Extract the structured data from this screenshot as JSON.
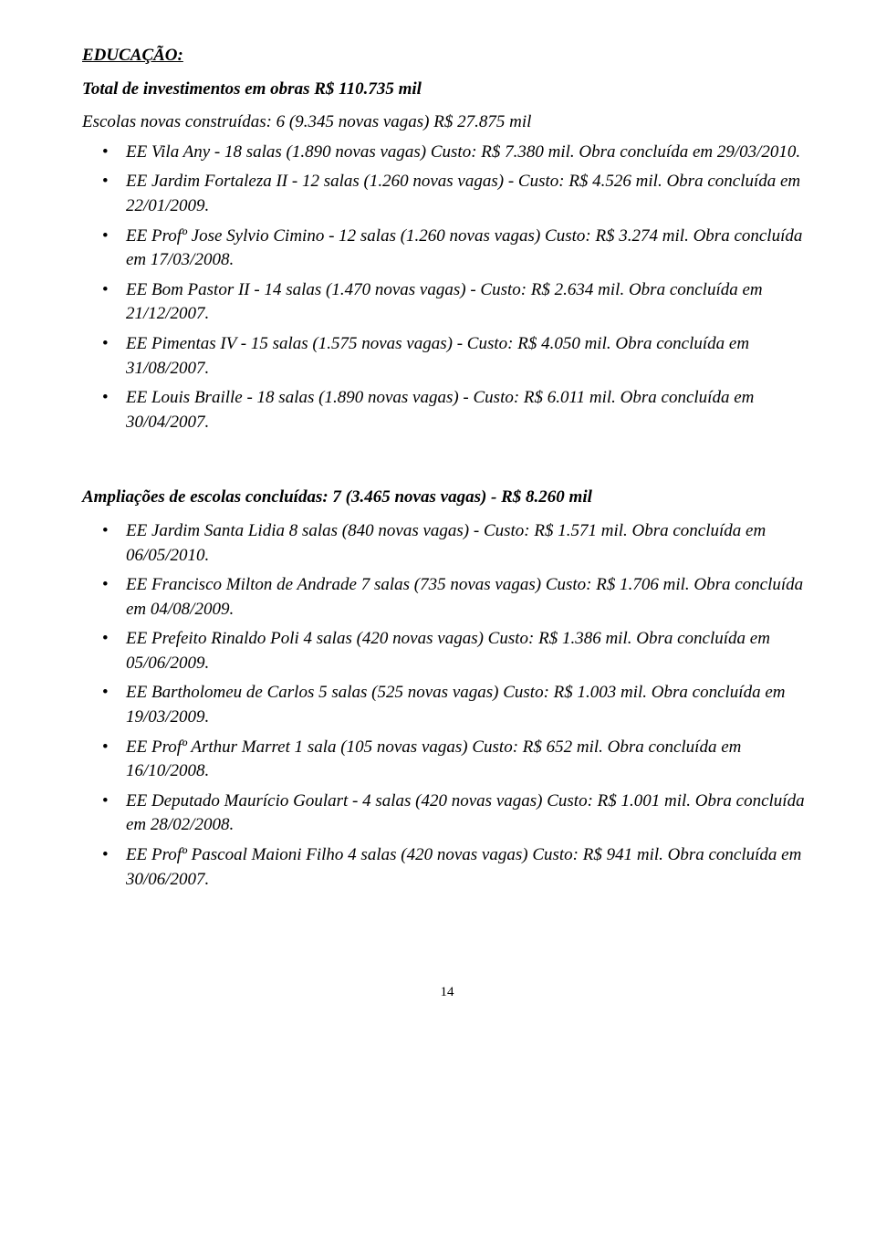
{
  "header": {
    "section_title": "EDUCAÇÃO:",
    "total_line": "Total de investimentos em obras R$ 110.735 mil",
    "schools_line": "Escolas novas construídas: 6 (9.345 novas vagas) R$ 27.875 mil"
  },
  "list1": [
    "EE Vila Any - 18 salas (1.890 novas vagas) Custo: R$ 7.380 mil. Obra concluída em 29/03/2010.",
    "EE Jardim Fortaleza II - 12 salas (1.260 novas vagas) - Custo: R$ 4.526 mil. Obra concluída em 22/01/2009.",
    "EE Profº Jose Sylvio Cimino - 12 salas (1.260 novas vagas) Custo: R$ 3.274 mil. Obra concluída em 17/03/2008.",
    "EE Bom Pastor II - 14 salas (1.470 novas vagas) - Custo: R$ 2.634 mil. Obra concluída em 21/12/2007.",
    "EE Pimentas IV - 15 salas (1.575 novas vagas) - Custo: R$ 4.050 mil. Obra concluída em 31/08/2007.",
    "EE Louis Braille - 18 salas (1.890 novas vagas) - Custo: R$ 6.011 mil. Obra concluída em 30/04/2007."
  ],
  "subheading": "Ampliações de escolas concluídas: 7 (3.465 novas vagas) - R$ 8.260 mil",
  "list2": [
    "EE Jardim Santa Lidia 8 salas (840 novas vagas) - Custo: R$ 1.571 mil. Obra concluída em 06/05/2010.",
    "EE Francisco Milton de Andrade 7 salas (735 novas vagas) Custo: R$ 1.706 mil. Obra concluída em 04/08/2009.",
    "EE Prefeito Rinaldo Poli 4 salas (420 novas vagas) Custo: R$ 1.386 mil. Obra concluída em 05/06/2009.",
    "EE Bartholomeu de Carlos 5 salas (525 novas vagas) Custo: R$ 1.003 mil. Obra concluída em 19/03/2009.",
    "EE Profº Arthur Marret 1 sala (105 novas vagas) Custo: R$ 652 mil. Obra concluída em 16/10/2008.",
    "EE Deputado Maurício Goulart - 4 salas (420 novas vagas) Custo: R$ 1.001 mil. Obra concluída em 28/02/2008.",
    "EE Profº Pascoal Maioni Filho 4 salas (420 novas vagas) Custo: R$ 941 mil. Obra concluída em 30/06/2007."
  ],
  "page_number": "14"
}
